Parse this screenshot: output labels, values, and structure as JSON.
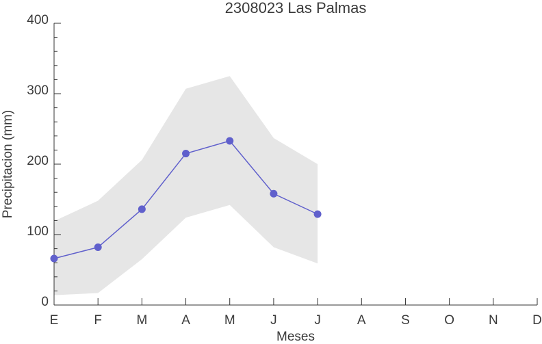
{
  "chart_data": {
    "type": "line",
    "title": "2308023 Las Palmas",
    "xlabel": "Meses",
    "ylabel": "Precipitacion (mm)",
    "categories": [
      "E",
      "F",
      "M",
      "A",
      "M",
      "J",
      "J",
      "A",
      "S",
      "O",
      "N",
      "D"
    ],
    "series": [
      {
        "color": "#6060cc",
        "values": [
          66,
          82,
          136,
          215,
          233,
          158,
          129,
          null,
          null,
          null,
          null,
          null
        ]
      }
    ],
    "band": {
      "color": "#e6e6e6",
      "upper": [
        119,
        148,
        206,
        307,
        325,
        237,
        200,
        null,
        null,
        null,
        null,
        null
      ],
      "lower": [
        14,
        17,
        65,
        124,
        142,
        82,
        59,
        null,
        null,
        null,
        null,
        null
      ]
    },
    "ylim": [
      0,
      400
    ],
    "yticks": [
      0,
      100,
      200,
      300,
      400
    ],
    "yminorticks": [
      20,
      40,
      60,
      80,
      120,
      140,
      160,
      180,
      220,
      240,
      260,
      280,
      320,
      340,
      360,
      380
    ],
    "grid": false
  }
}
